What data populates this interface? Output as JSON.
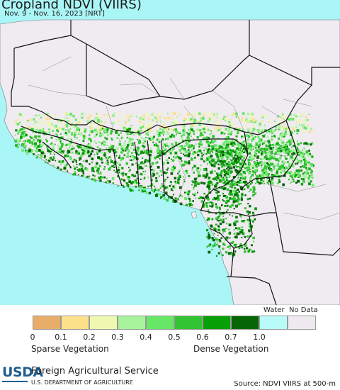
{
  "title": "Cropland NDVI (VIIRS)",
  "subtitle": "Nov. 9 - Nov. 16, 2023 [NRT]",
  "legend": {
    "water_label": "Water",
    "nodata_label": "No Data",
    "sparse_label": "Sparse Vegetation",
    "dense_label": "Dense Vegetation",
    "ticks": [
      "0",
      "0.1",
      "0.2",
      "0.3",
      "0.4",
      "0.5",
      "0.6",
      "0.7",
      "1.0"
    ],
    "classes": [
      {
        "range": "0 - 0.1",
        "color": "#e8ad68"
      },
      {
        "range": "0.1 - 0.2",
        "color": "#fde08a"
      },
      {
        "range": "0.2 - 0.3",
        "color": "#eef8b0"
      },
      {
        "range": "0.3 - 0.4",
        "color": "#a6f39c"
      },
      {
        "range": "0.4 - 0.5",
        "color": "#66e866"
      },
      {
        "range": "0.5 - 0.6",
        "color": "#33c433"
      },
      {
        "range": "0.6 - 0.7",
        "color": "#07a007"
      },
      {
        "range": "0.7 - 1.0",
        "color": "#046604"
      }
    ],
    "water_color": "#b8fbf8",
    "nodata_color": "#eeeaf0"
  },
  "colors": {
    "ocean": "#aaf5f5",
    "land": "#efebf0",
    "border": "#111111"
  },
  "footer": {
    "logo_text": "USDA",
    "agency": "Foreign Agricultural Service",
    "department": "U.S. DEPARTMENT OF AGRICULTURE",
    "source": "Source: NDVI VIIRS at 500-m"
  }
}
